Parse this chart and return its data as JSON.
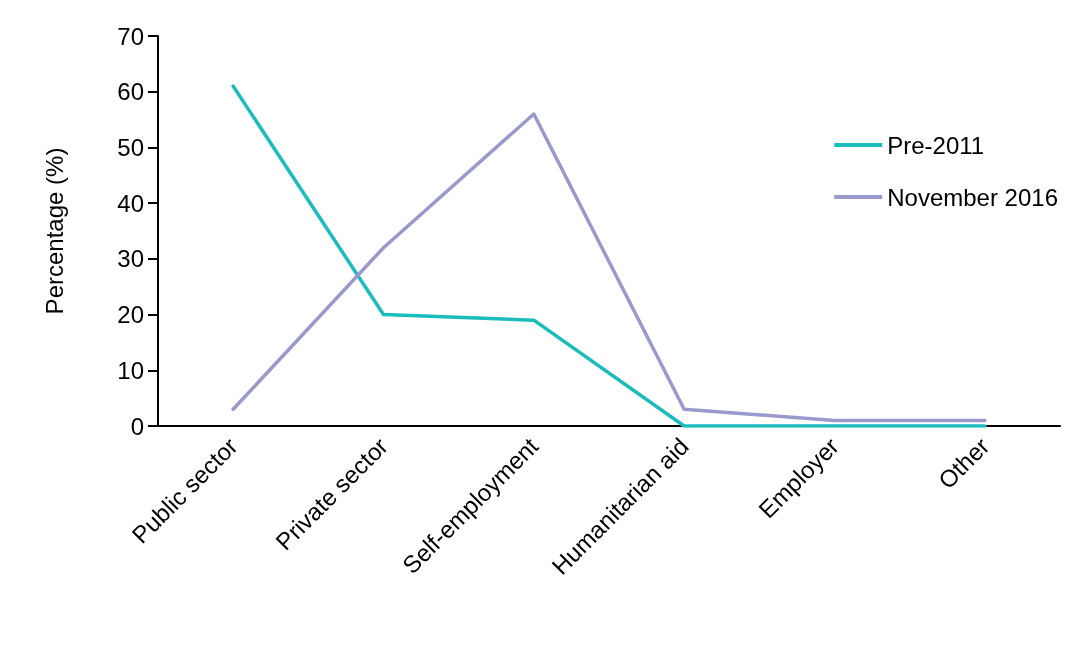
{
  "chart_data": {
    "type": "line",
    "ylabel": "Percentage (%)",
    "categories": [
      "Public sector",
      "Private sector",
      "Self-employment",
      "Humanitarian aid",
      "Employer",
      "Other"
    ],
    "series": [
      {
        "name": "Pre-2011",
        "color": "#1abcbc",
        "values": [
          61,
          20,
          19,
          0,
          0,
          0
        ]
      },
      {
        "name": "November 2016",
        "color": "#9999cc",
        "values": [
          3,
          32,
          56,
          3,
          1,
          1
        ]
      }
    ],
    "ylim": [
      0,
      70
    ],
    "yticks": [
      0,
      10,
      20,
      30,
      40,
      50,
      60,
      70
    ],
    "grid": false,
    "legend": "top right",
    "marker": "none",
    "line_style": "solid"
  }
}
